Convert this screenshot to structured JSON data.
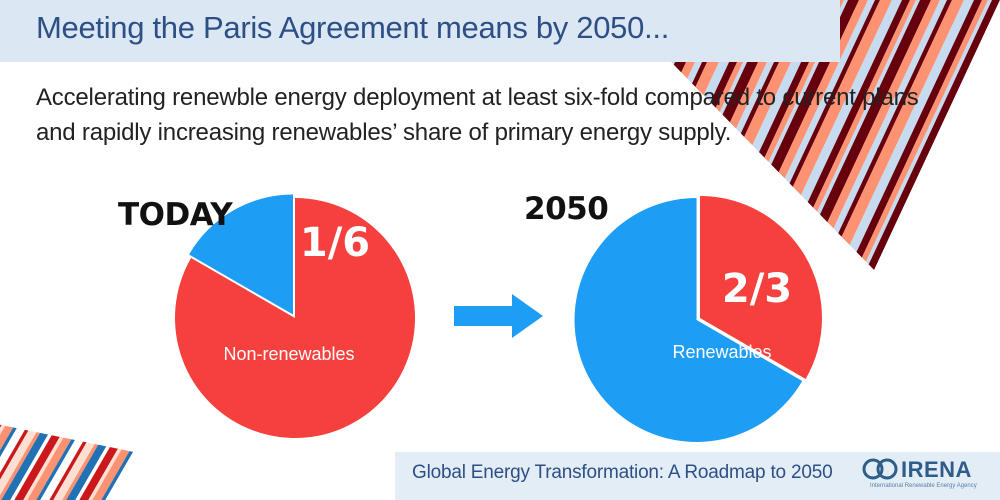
{
  "header": {
    "title": "Meeting the Paris Agreement means by 2050...",
    "subtitle": "Accelerating renewble energy deployment at least six-fold compared to current plans and rapidly increasing renewables’ share of primary energy supply."
  },
  "chart_data": [
    {
      "type": "pie",
      "title": "TODAY",
      "slices": [
        {
          "label": "Non-renewables",
          "value": 5,
          "color": "#f5403d"
        },
        {
          "label": "1/6",
          "value": 1,
          "color": "#1e9df5"
        }
      ]
    },
    {
      "type": "pie",
      "title": "2050",
      "slices": [
        {
          "label": "",
          "value": 1,
          "color": "#f5403d"
        },
        {
          "label": "Renewables",
          "value": 2,
          "color": "#1e9df5"
        }
      ],
      "callout": "2/3"
    }
  ],
  "arrow": {
    "color": "#1e9df5",
    "icon": "right-arrow-icon"
  },
  "footer": {
    "text": "Global Energy Transformation: A Roadmap to 2050",
    "logo_word": "IRENA",
    "logo_small": "International Renewable Energy Agency"
  }
}
